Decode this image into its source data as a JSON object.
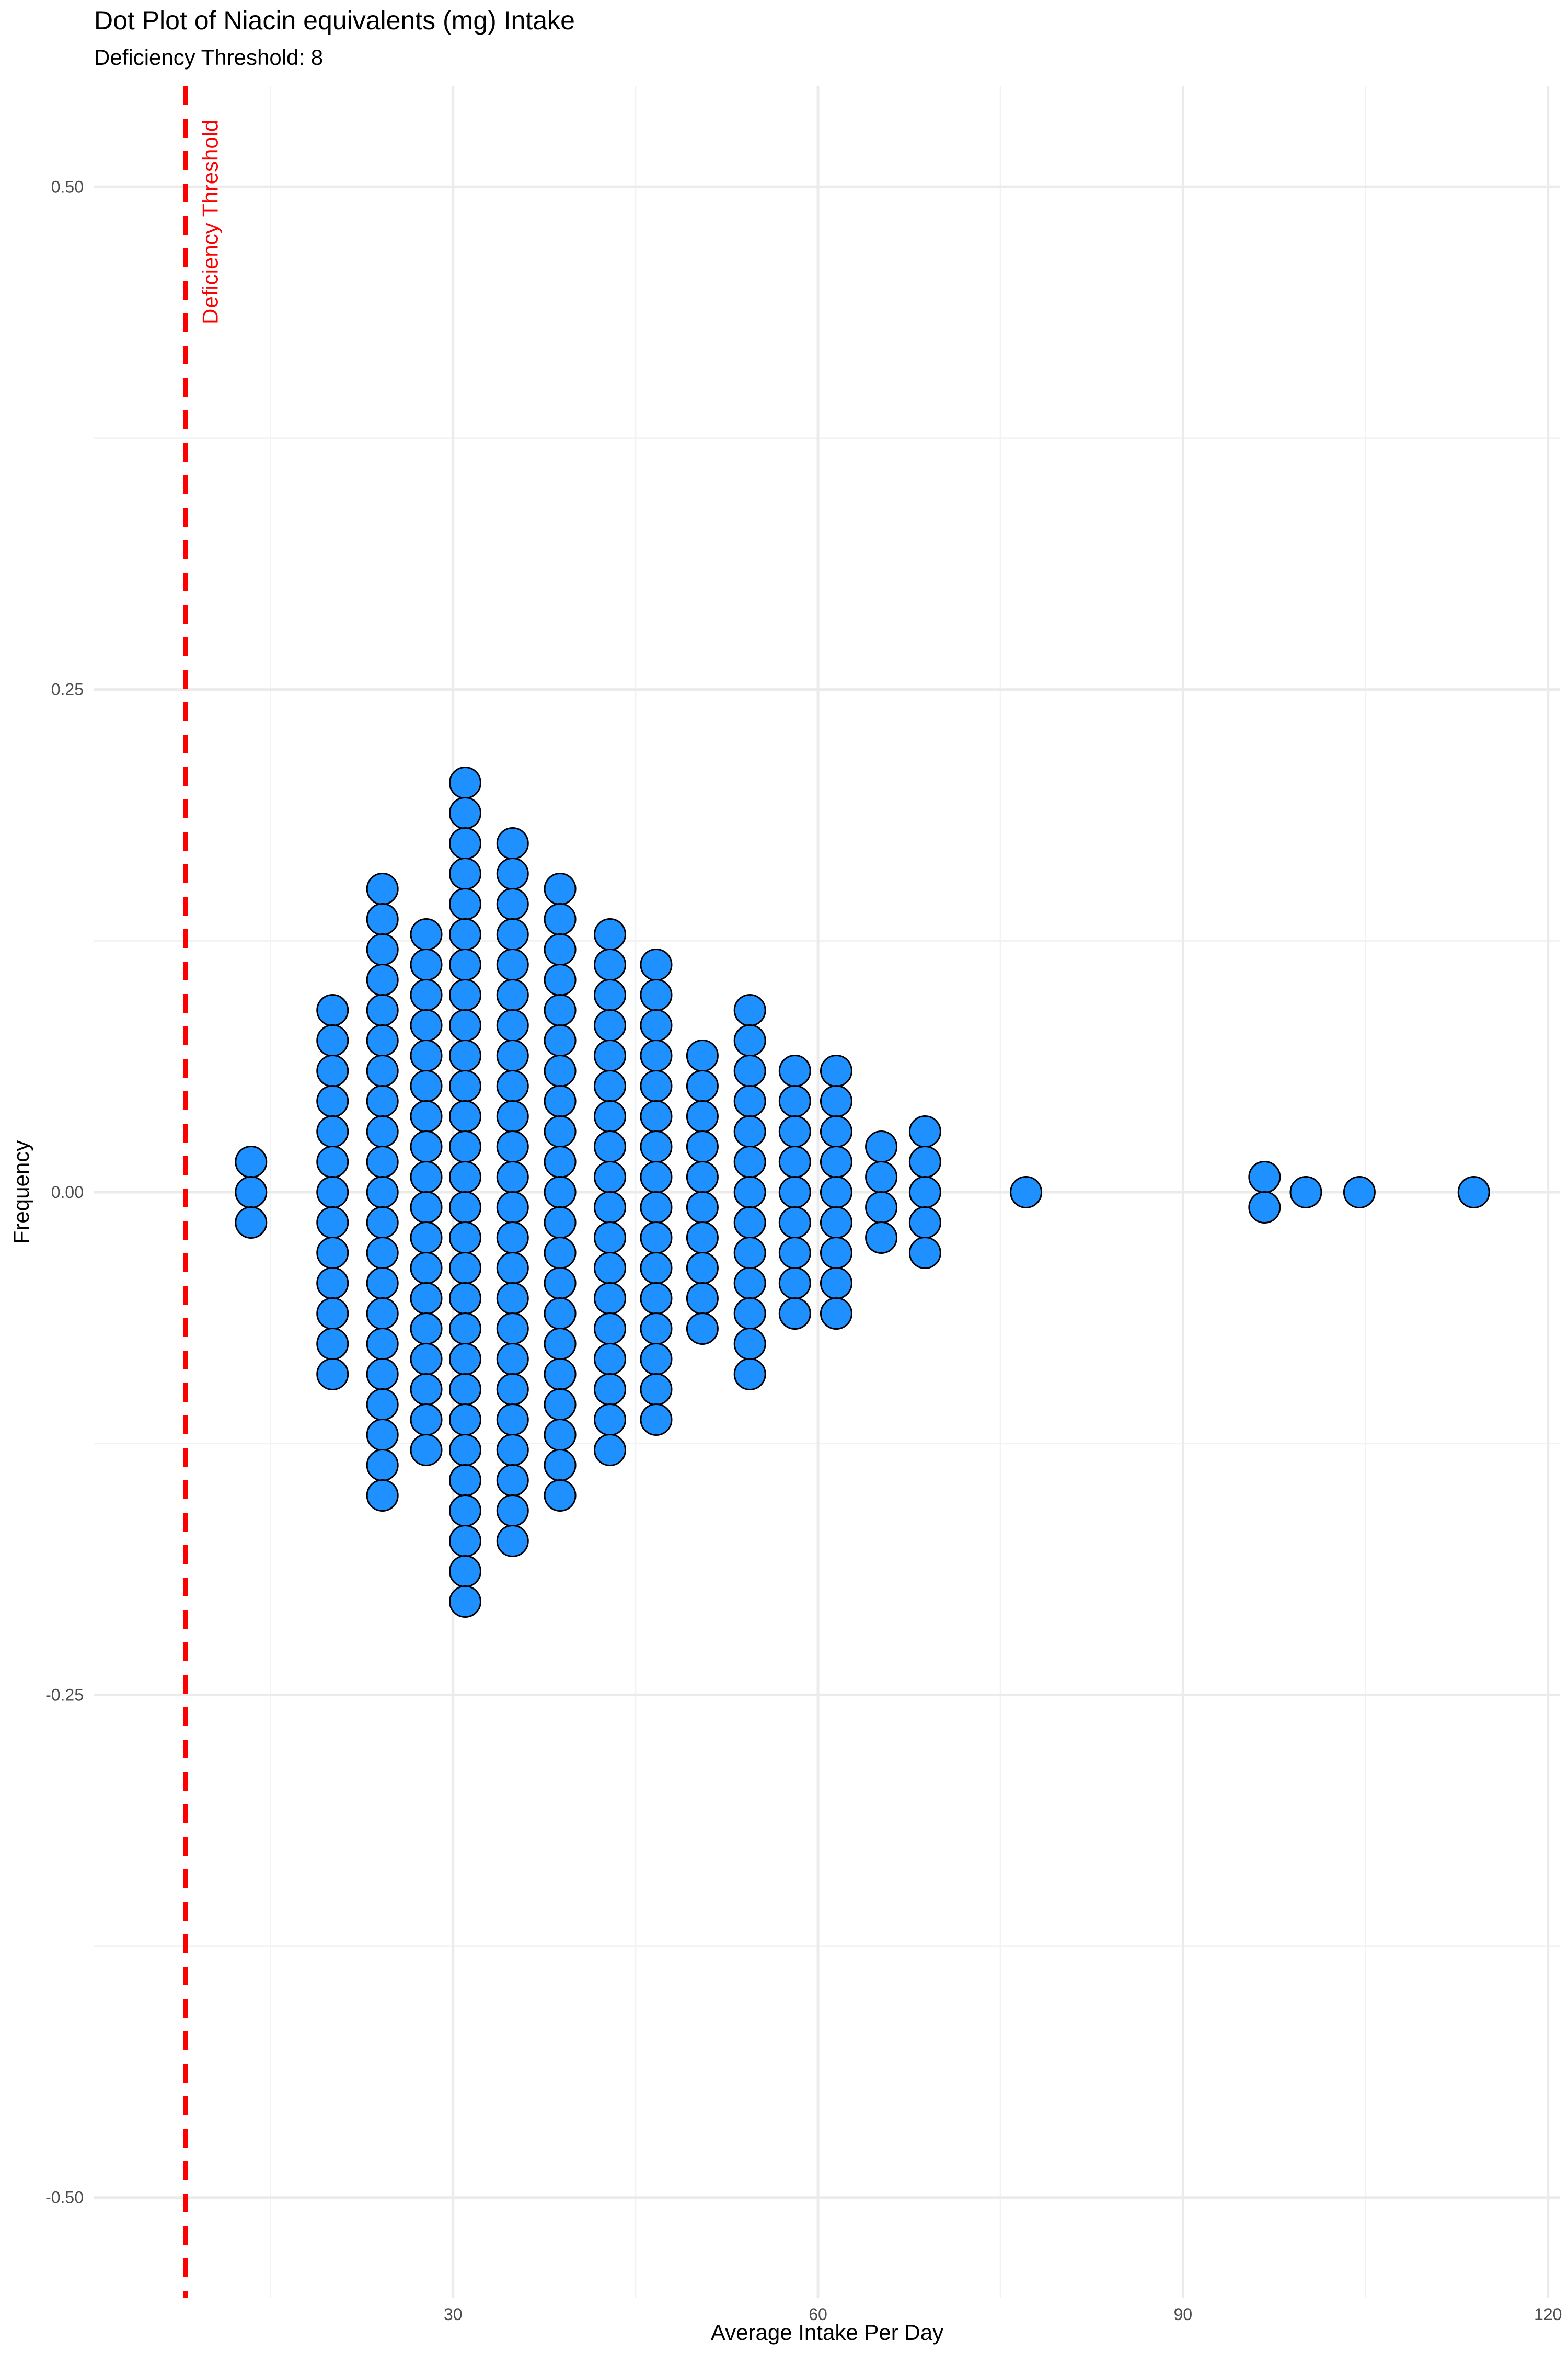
{
  "chart_data": {
    "type": "dotplot",
    "title": "Dot Plot of Niacin equivalents (mg) Intake",
    "subtitle": "Deficiency Threshold: 8",
    "xlabel": "Average Intake Per Day",
    "ylabel": "Frequency",
    "xlim": [
      0.5,
      121
    ],
    "ylim": [
      -0.55,
      0.55
    ],
    "x_ticks": [
      30,
      60,
      90,
      120
    ],
    "y_ticks": [
      0.5,
      0.25,
      0.0,
      -0.25,
      -0.5
    ],
    "y_tick_labels": [
      "0.50",
      "0.25",
      "0.00",
      "-0.25",
      "-0.50"
    ],
    "grid": true,
    "threshold": {
      "x": 8,
      "label": "Deficiency Threshold",
      "color": "#ff0000"
    },
    "dot_fill": "#1e90ff",
    "dot_stroke": "#000000",
    "bins": [
      {
        "x": 13.4,
        "count": 3
      },
      {
        "x": 20.1,
        "count": 13
      },
      {
        "x": 24.2,
        "count": 21
      },
      {
        "x": 27.8,
        "count": 18
      },
      {
        "x": 31.0,
        "count": 28
      },
      {
        "x": 34.9,
        "count": 24
      },
      {
        "x": 38.8,
        "count": 21
      },
      {
        "x": 42.9,
        "count": 18
      },
      {
        "x": 46.7,
        "count": 16
      },
      {
        "x": 50.5,
        "count": 10
      },
      {
        "x": 54.4,
        "count": 13
      },
      {
        "x": 58.1,
        "count": 9
      },
      {
        "x": 61.5,
        "count": 9
      },
      {
        "x": 65.2,
        "count": 4
      },
      {
        "x": 68.8,
        "count": 5
      },
      {
        "x": 77.1,
        "count": 1
      },
      {
        "x": 96.7,
        "count": 2
      },
      {
        "x": 100.1,
        "count": 1
      },
      {
        "x": 104.5,
        "count": 1
      },
      {
        "x": 113.9,
        "count": 1
      }
    ]
  }
}
